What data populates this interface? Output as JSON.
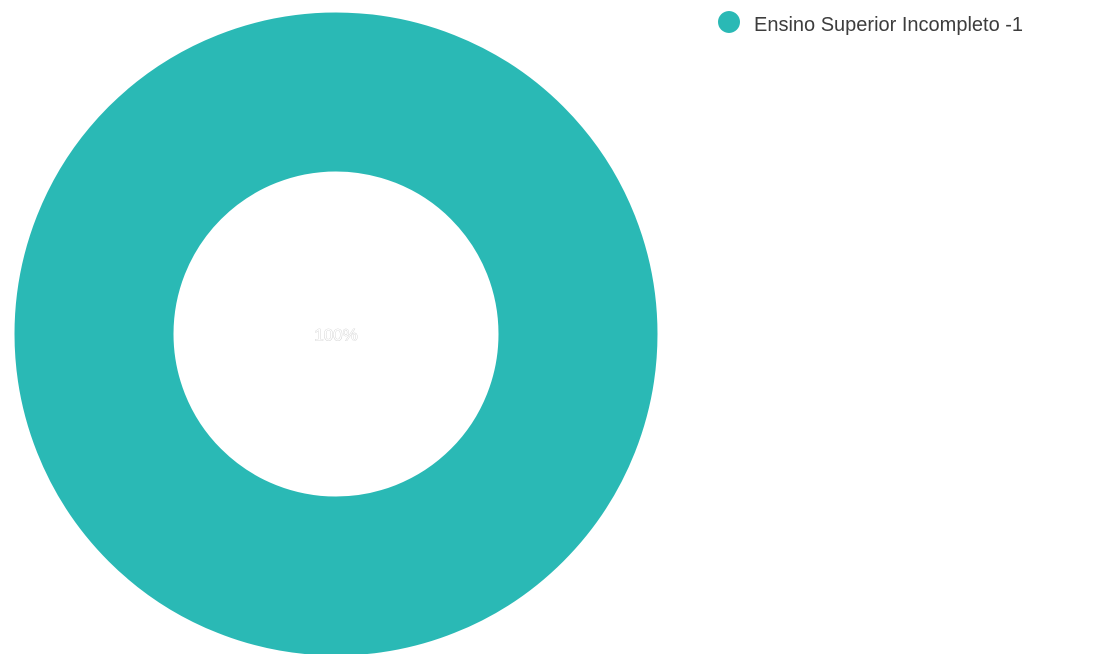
{
  "chart_data": {
    "type": "pie",
    "variant": "donut",
    "categories": [
      "Ensino Superior Incompleto"
    ],
    "values": [
      1
    ],
    "colors": [
      "#2ab9b5"
    ],
    "slice_labels": [
      "100%"
    ],
    "legend_entries": [
      {
        "label": "Ensino Superior Incompleto -",
        "value": "1"
      }
    ],
    "legend_placement": "top-right",
    "title": "",
    "grid": false
  }
}
